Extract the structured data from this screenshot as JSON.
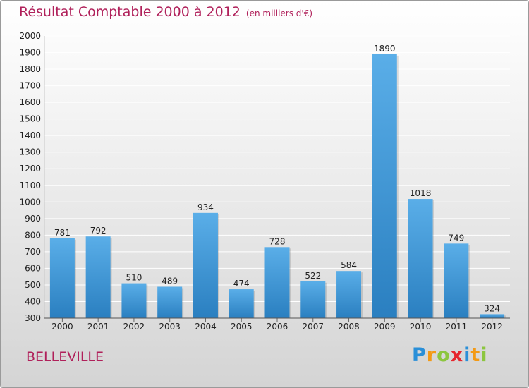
{
  "header": {
    "title": "Résultat Comptable 2000 à 2012",
    "unit": "(en milliers d'€)"
  },
  "footer": {
    "town": "BELLEVILLE",
    "logo_letters": [
      "P",
      "r",
      "o",
      "x",
      "i",
      "t",
      "i"
    ],
    "logo_colors": [
      "#2a8fd8",
      "#f39a16",
      "#8cc63f",
      "#e6262e",
      "#2a8fd8",
      "#f39a16",
      "#8cc63f"
    ]
  },
  "colors": {
    "title": "#b0205a",
    "bar_top": "#5aaee8",
    "bar_bottom": "#2a7fc0",
    "grid": "#ffffff"
  },
  "chart_data": {
    "type": "bar",
    "title": "Résultat Comptable 2000 à 2012",
    "subtitle": "(en milliers d'€)",
    "xlabel": "",
    "ylabel": "",
    "categories": [
      "2000",
      "2001",
      "2002",
      "2003",
      "2004",
      "2005",
      "2006",
      "2007",
      "2008",
      "2009",
      "2010",
      "2011",
      "2012"
    ],
    "values": [
      781,
      792,
      510,
      489,
      934,
      474,
      728,
      522,
      584,
      1890,
      1018,
      749,
      324
    ],
    "ylim": [
      300,
      2000
    ],
    "yticks": [
      300,
      400,
      500,
      600,
      700,
      800,
      900,
      1000,
      1100,
      1200,
      1300,
      1400,
      1500,
      1600,
      1700,
      1800,
      1900,
      2000
    ],
    "grid": true,
    "data_labels": true
  }
}
